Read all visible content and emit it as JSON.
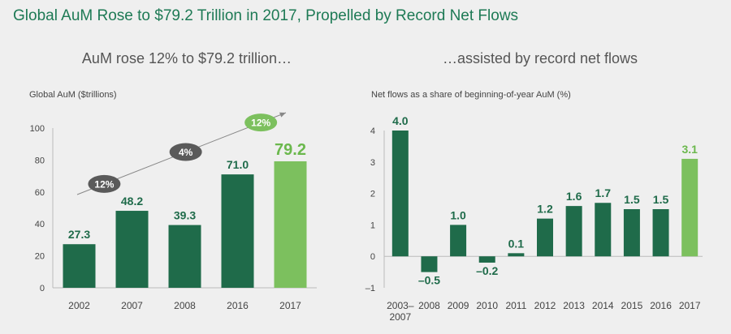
{
  "title": "Global AuM Rose to $79.2 Trillion in 2017, Propelled by Record Net Flows",
  "colors": {
    "bar": "#1f6b4a",
    "bar_highlight": "#7cc05e",
    "title": "#1e7a55",
    "bubble_dark": "#5a5a5a"
  },
  "chart_data": [
    {
      "type": "bar",
      "subtitle": "AuM rose 12% to $79.2 trillion…",
      "ylabel": "Global AuM ($trillions)",
      "categories": [
        "2002",
        "2007",
        "2008",
        "2016",
        "2017"
      ],
      "values": [
        27.3,
        48.2,
        39.3,
        71.0,
        79.2
      ],
      "value_labels": [
        "27.3",
        "48.2",
        "39.3",
        "71.0",
        "79.2"
      ],
      "highlight_index": 4,
      "ylim": [
        0,
        100
      ],
      "yticks": [
        0,
        20,
        40,
        60,
        80,
        100
      ],
      "yticks_labels": [
        "0",
        "20",
        "40",
        "60",
        "80",
        "100"
      ],
      "grid": false,
      "annotations": [
        {
          "text": "12%",
          "style": "dark",
          "between": [
            "2002",
            "2007"
          ]
        },
        {
          "text": "4%",
          "style": "dark",
          "between": [
            "2008",
            "2016"
          ]
        },
        {
          "text": "12%",
          "style": "highlight",
          "between": [
            "2016",
            "2017"
          ]
        }
      ]
    },
    {
      "type": "bar",
      "subtitle": "…assisted by record net flows",
      "ylabel": "Net flows as a share of beginning-of-year AuM (%)",
      "categories": [
        [
          "2003–",
          "2007"
        ],
        "2008",
        "2009",
        "2010",
        "2011",
        "2012",
        "2013",
        "2014",
        "2015",
        "2016",
        "2017"
      ],
      "values": [
        4.0,
        -0.5,
        1.0,
        -0.2,
        0.1,
        1.2,
        1.6,
        1.7,
        1.5,
        1.5,
        3.1
      ],
      "value_labels": [
        "4.0",
        "–0.5",
        "1.0",
        "–0.2",
        "0.1",
        "1.2",
        "1.6",
        "1.7",
        "1.5",
        "1.5",
        "3.1"
      ],
      "highlight_index": 10,
      "ylim": [
        -1,
        4
      ],
      "yticks": [
        -1,
        0,
        1,
        2,
        3,
        4
      ],
      "yticks_labels": [
        "–1",
        "0",
        "1",
        "2",
        "3",
        "4"
      ],
      "grid": false
    }
  ]
}
